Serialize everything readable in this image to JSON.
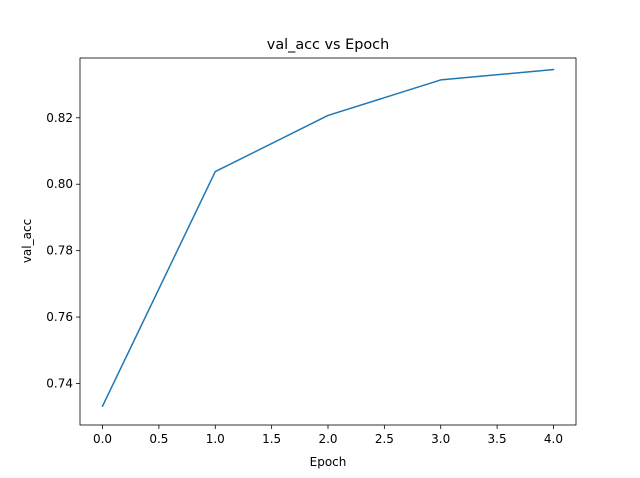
{
  "chart_data": {
    "type": "line",
    "title": "val_acc vs Epoch",
    "xlabel": "Epoch",
    "ylabel": "val_acc",
    "x": [
      0,
      1,
      2,
      3,
      4
    ],
    "series": [
      {
        "values": [
          0.7332,
          0.8038,
          0.8207,
          0.8314,
          0.8345
        ],
        "color": "#1f77b4"
      }
    ],
    "xlim": [
      -0.2,
      4.2
    ],
    "ylim": [
      0.7275,
      0.838
    ],
    "xticks": [
      0.0,
      0.5,
      1.0,
      1.5,
      2.0,
      2.5,
      3.0,
      3.5,
      4.0
    ],
    "xtick_labels": [
      "0.0",
      "0.5",
      "1.0",
      "1.5",
      "2.0",
      "2.5",
      "3.0",
      "3.5",
      "4.0"
    ],
    "yticks": [
      0.74,
      0.76,
      0.78,
      0.8,
      0.82
    ],
    "ytick_labels": [
      "0.74",
      "0.76",
      "0.78",
      "0.80",
      "0.82"
    ],
    "grid": false,
    "legend": false
  }
}
